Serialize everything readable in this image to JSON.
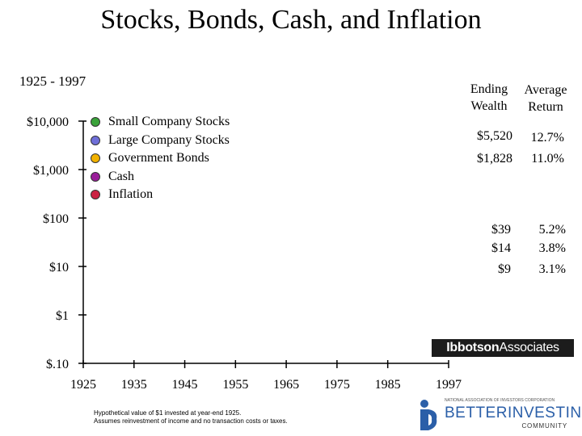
{
  "title": "Stocks, Bonds, Cash, and Inflation",
  "period": "1925 - 1997",
  "chart_data": {
    "type": "line",
    "title": "Stocks, Bonds, Cash, and Inflation",
    "subtitle": "1925 - 1997",
    "y_scale": "log",
    "y_ticks": [
      {
        "value": 0.1,
        "label": "$.10"
      },
      {
        "value": 1,
        "label": "$1"
      },
      {
        "value": 10,
        "label": "$10"
      },
      {
        "value": 100,
        "label": "$100"
      },
      {
        "value": 1000,
        "label": "$1,000"
      },
      {
        "value": 10000,
        "label": "$10,000"
      }
    ],
    "ylim": [
      0.1,
      10000
    ],
    "x_ticks": [
      {
        "value": 1925,
        "label": "1925"
      },
      {
        "value": 1935,
        "label": "1935"
      },
      {
        "value": 1945,
        "label": "1945"
      },
      {
        "value": 1955,
        "label": "1955"
      },
      {
        "value": 1965,
        "label": "1965"
      },
      {
        "value": 1975,
        "label": "1975"
      },
      {
        "value": 1985,
        "label": "1985"
      },
      {
        "value": 1997,
        "label": "1997"
      }
    ],
    "xlim": [
      1925,
      1997
    ],
    "series": [
      {
        "name": "Small Company Stocks",
        "color": "#3aa33a",
        "ending_wealth": "$5,520",
        "average_return": "12.7%"
      },
      {
        "name": "Large Company Stocks",
        "color": "#6f6fd8",
        "ending_wealth": "$1,828",
        "average_return": "11.0%"
      },
      {
        "name": "Government Bonds",
        "color": "#f2b200",
        "ending_wealth": "$39",
        "average_return": "5.2%"
      },
      {
        "name": "Cash",
        "color": "#9a1e9a",
        "ending_wealth": "$14",
        "average_return": "3.8%"
      },
      {
        "name": "Inflation",
        "color": "#cc2244",
        "ending_wealth": "$9",
        "average_return": "3.1%"
      }
    ],
    "columns": {
      "ending_wealth": "Ending Wealth",
      "average_return": "Average Return"
    }
  },
  "headers": {
    "ending_line1": "Ending",
    "ending_line2": "Wealth",
    "avg_line1": "Average",
    "avg_line2": "Return"
  },
  "footnote": {
    "line1": "Hypothetical value of $1 invested at year-end 1925.",
    "line2": "Assumes reinvestment of income and no transaction costs or taxes."
  },
  "logos": {
    "ibbotson_bold": "Ibbotson",
    "ibbotson_rest": "Associates",
    "bi_small": "NATIONAL ASSOCIATION OF INVESTORS CORPORATION",
    "bi_name": "BETTERINVESTING",
    "bi_community": "COMMUNITY"
  }
}
